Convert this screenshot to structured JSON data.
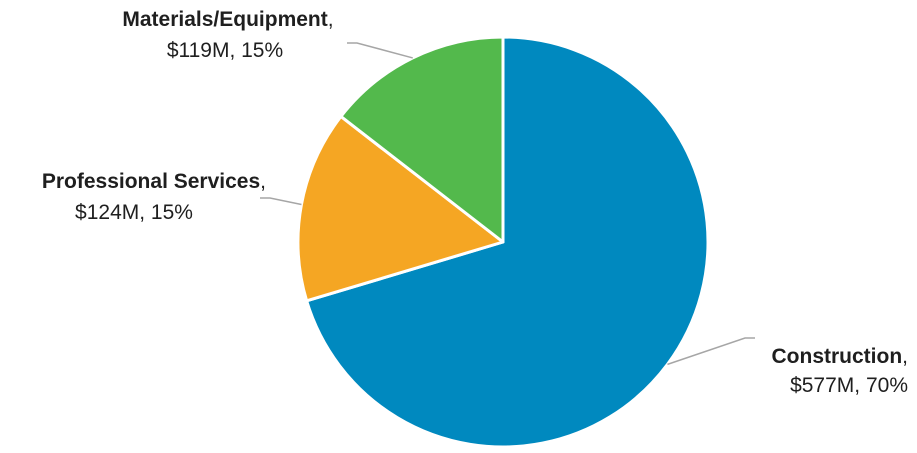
{
  "chart_data": {
    "type": "pie",
    "title": "",
    "legend": "none",
    "slices": [
      {
        "name": "Construction",
        "value_label": "$577M, 70%",
        "value": 577,
        "percent": 70,
        "color": "#0089BF"
      },
      {
        "name": "Professional Services",
        "value_label": "$124M, 15%",
        "value": 124,
        "percent": 15,
        "color": "#F5A623"
      },
      {
        "name": "Materials/Equipment",
        "value_label": "$119M, 15%",
        "value": 119,
        "percent": 15,
        "color": "#53B94C"
      }
    ]
  }
}
